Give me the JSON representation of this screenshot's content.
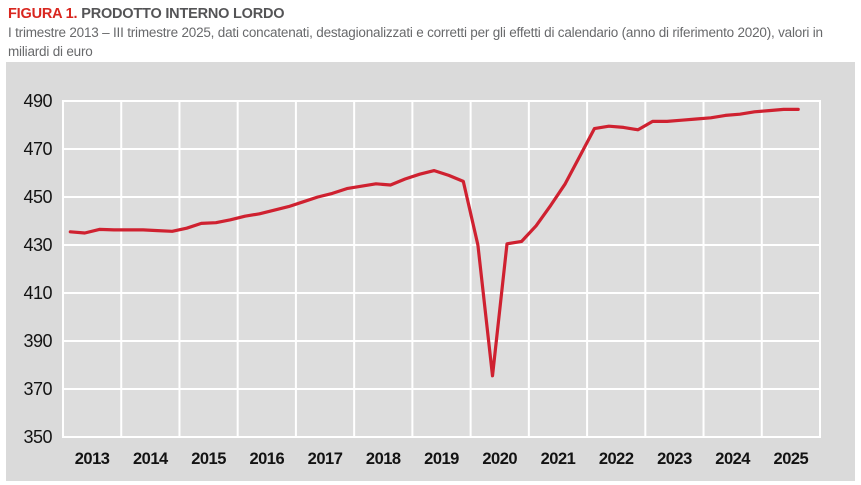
{
  "figure": {
    "label": "FIGURA 1.",
    "title": "PRODOTTO INTERNO LORDO",
    "subtitle": "I trimestre 2013 – III trimestre 2025, dati concatenati, destagionalizzati e corretti per gli effetti di calendario (anno di riferimento 2020), valori in miliardi di euro"
  },
  "colors": {
    "accent_red": "#d9261f",
    "line_red": "#cf2130",
    "band_background": "#dadada",
    "plot_background": "#dddddd",
    "gridline": "#ffffff",
    "tick_text": "#131313"
  },
  "chart_data": {
    "type": "line",
    "title": "Prodotto interno lordo",
    "unit": "miliardi di euro",
    "x_start": "I trimestre 2013",
    "x_end": "III trimestre 2025",
    "categories": [
      "2013",
      "2014",
      "2015",
      "2016",
      "2017",
      "2018",
      "2019",
      "2020",
      "2021",
      "2022",
      "2023",
      "2024",
      "2025"
    ],
    "quarters_per_year": 4,
    "ylim": [
      350,
      490
    ],
    "yticks": [
      350,
      370,
      390,
      410,
      430,
      450,
      470,
      490
    ],
    "grid": "white gridlines on gray plot, vertical lines at year boundaries",
    "legend": "none",
    "series": [
      {
        "name": "PIL (miliardi di euro)",
        "color": "#cf2130",
        "values": [
          435.5,
          435.0,
          436.5,
          436.3,
          436.3,
          436.3,
          436.0,
          435.7,
          437.0,
          439.0,
          439.3,
          440.5,
          442.0,
          443.0,
          444.5,
          446.0,
          448.0,
          450.0,
          451.5,
          453.5,
          454.5,
          455.5,
          455.0,
          457.5,
          459.5,
          461.0,
          459.0,
          456.5,
          430.0,
          375.5,
          430.5,
          431.5,
          438.0,
          446.5,
          455.5,
          467.0,
          478.5,
          479.5,
          479.0,
          478.0,
          481.5,
          481.5,
          482.0,
          482.5,
          483.0,
          484.0,
          484.5,
          485.5,
          486.0,
          486.5,
          486.5
        ]
      }
    ]
  }
}
